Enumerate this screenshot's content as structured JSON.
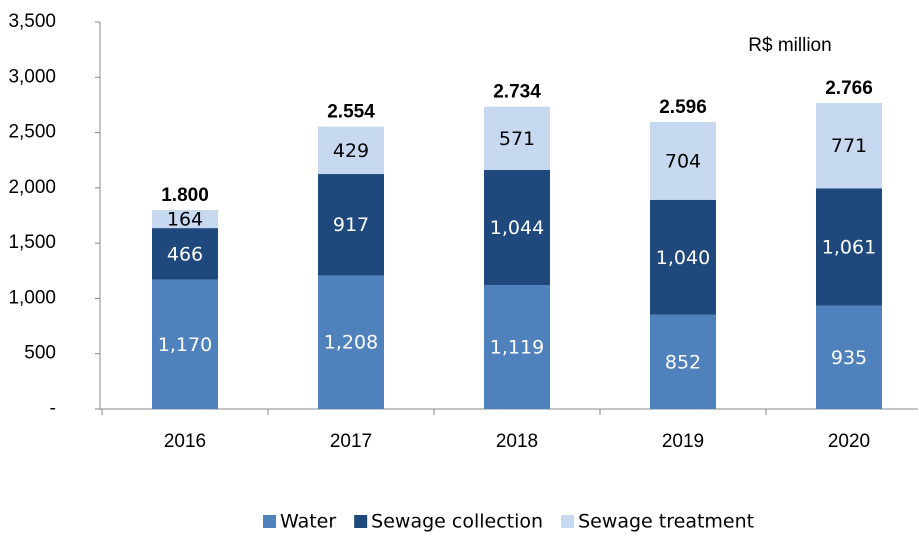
{
  "chart_data": {
    "type": "stacked_bar",
    "annotation": "R$ million",
    "categories": [
      "2016",
      "2017",
      "2018",
      "2019",
      "2020"
    ],
    "series": [
      {
        "name": "Water",
        "color": "#4f81bd",
        "values": [
          1170,
          1208,
          1119,
          852,
          935
        ],
        "value_labels": [
          "1,170",
          "1,208",
          "1,119",
          "852",
          "935"
        ]
      },
      {
        "name": "Sewage collection",
        "color": "#1f497d",
        "values": [
          466,
          917,
          1044,
          1040,
          1061
        ],
        "value_labels": [
          "466",
          "917",
          "1,044",
          "1,040",
          "1,061"
        ]
      },
      {
        "name": "Sewage treatment",
        "color": "#c6d9f1",
        "values": [
          164,
          429,
          571,
          704,
          771
        ],
        "value_labels": [
          "164",
          "429",
          "571",
          "704",
          "771"
        ]
      }
    ],
    "totals": {
      "values": [
        1800,
        2554,
        2734,
        2596,
        2766
      ],
      "value_labels": [
        "1.800",
        "2.554",
        "2.734",
        "2.596",
        "2.766"
      ]
    },
    "ylim": [
      0,
      3500
    ],
    "yticks": [
      {
        "value": 0,
        "label": "-"
      },
      500,
      {
        "value": 1000,
        "label": "1,000"
      },
      {
        "value": 1500,
        "label": "1,500"
      },
      {
        "value": 2000,
        "label": "2,000"
      },
      {
        "value": 2500,
        "label": "2,500"
      },
      {
        "value": 3000,
        "label": "3,000"
      },
      {
        "value": 3500,
        "label": "3,500"
      }
    ],
    "grid": false,
    "legend": "bottom"
  }
}
